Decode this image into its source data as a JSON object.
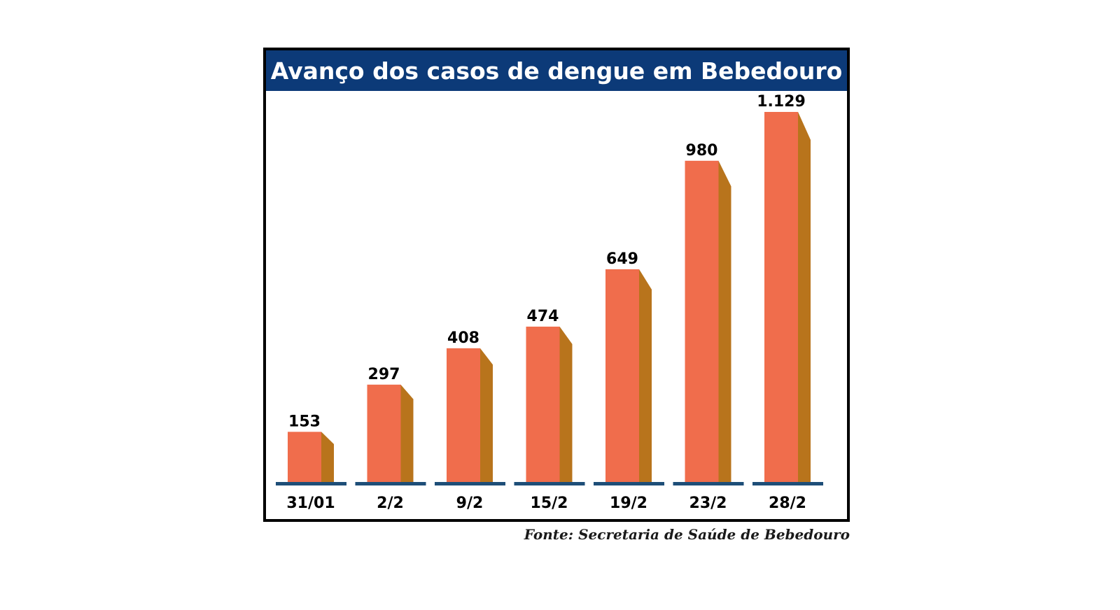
{
  "colors": {
    "title_bar": "#0c3a78",
    "bar_front": "#f06d4c",
    "bar_side": "#b8741c",
    "baseline": "#1e4e78",
    "text": "#000000"
  },
  "chart_data": {
    "type": "bar",
    "title": "Avanço dos casos de dengue em Bebedouro",
    "categories": [
      "31/01",
      "2/2",
      "9/2",
      "15/2",
      "19/2",
      "23/2",
      "28/2"
    ],
    "values": [
      153,
      297,
      408,
      474,
      649,
      980,
      1129
    ],
    "value_labels": [
      "153",
      "297",
      "408",
      "474",
      "649",
      "980",
      "1.129"
    ],
    "xlabel": "",
    "ylabel": "",
    "ylim": [
      0,
      1129
    ],
    "grid": false,
    "legend": "none",
    "source": "Fonte: Secretaria de Saúde de Bebedouro"
  }
}
